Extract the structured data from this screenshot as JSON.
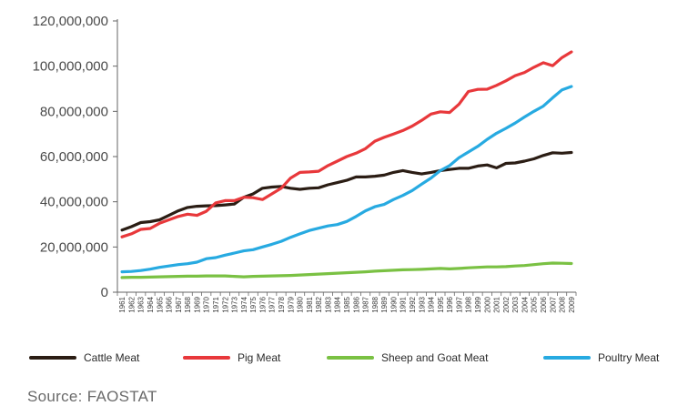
{
  "chart_data": {
    "type": "line",
    "title": "",
    "xlabel": "",
    "ylabel": "",
    "ylim": [
      0,
      120000000
    ],
    "yticks": [
      "0",
      "20,000,000",
      "40,000,000",
      "60,000,000",
      "80,000,000",
      "100,000,000",
      "120,000,000"
    ],
    "ytick_values": [
      0,
      20000000,
      40000000,
      60000000,
      80000000,
      100000000,
      120000000
    ],
    "grid": false,
    "legend_position": "bottom",
    "x": [
      "1961",
      "1962",
      "1963",
      "1964",
      "1965",
      "1966",
      "1967",
      "1968",
      "1969",
      "1970",
      "1971",
      "1972",
      "1973",
      "1974",
      "1975",
      "1976",
      "1977",
      "1978",
      "1979",
      "1980",
      "1981",
      "1982",
      "1983",
      "1984",
      "1985",
      "1986",
      "1987",
      "1988",
      "1989",
      "1990",
      "1991",
      "1992",
      "1993",
      "1994",
      "1995",
      "1996",
      "1997",
      "1998",
      "1999",
      "2000",
      "2001",
      "2002",
      "2003",
      "2004",
      "2005",
      "2006",
      "2007",
      "2008",
      "2009"
    ],
    "series": [
      {
        "name": "Cattle Meat",
        "color": "#2b1d14",
        "values": [
          27500000,
          29000000,
          30800000,
          31200000,
          32000000,
          34000000,
          36000000,
          37500000,
          38000000,
          38200000,
          38300000,
          38600000,
          39000000,
          42000000,
          43500000,
          46000000,
          46500000,
          46800000,
          46000000,
          45500000,
          46000000,
          46200000,
          47500000,
          48500000,
          49500000,
          51000000,
          51000000,
          51300000,
          51800000,
          53000000,
          53800000,
          53000000,
          52300000,
          53000000,
          53800000,
          54300000,
          54800000,
          54800000,
          55800000,
          56300000,
          55000000,
          57000000,
          57200000,
          58000000,
          59000000,
          60500000,
          61700000,
          61500000,
          61800000
        ]
      },
      {
        "name": "Pig Meat",
        "color": "#e8383b",
        "values": [
          24500000,
          25800000,
          27800000,
          28200000,
          30500000,
          32000000,
          33500000,
          34500000,
          34000000,
          35800000,
          39500000,
          40500000,
          40500000,
          42000000,
          41800000,
          41000000,
          43500000,
          46000000,
          50500000,
          53000000,
          53200000,
          53500000,
          56000000,
          58000000,
          60000000,
          61500000,
          63500000,
          66800000,
          68500000,
          70000000,
          71500000,
          73500000,
          76000000,
          78800000,
          79800000,
          79500000,
          83200000,
          88800000,
          89700000,
          89800000,
          91500000,
          93500000,
          95800000,
          97200000,
          99500000,
          101500000,
          100200000,
          103800000,
          106300000
        ]
      },
      {
        "name": "Sheep and Goat Meat",
        "color": "#7ac143",
        "values": [
          6500000,
          6600000,
          6600000,
          6700000,
          6800000,
          6900000,
          7000000,
          7100000,
          7100000,
          7200000,
          7200000,
          7200000,
          7000000,
          6800000,
          7000000,
          7100000,
          7200000,
          7300000,
          7400000,
          7600000,
          7800000,
          8000000,
          8200000,
          8400000,
          8600000,
          8800000,
          9000000,
          9300000,
          9500000,
          9700000,
          9900000,
          10000000,
          10100000,
          10300000,
          10500000,
          10300000,
          10500000,
          10800000,
          11000000,
          11200000,
          11200000,
          11300000,
          11600000,
          11800000,
          12200000,
          12600000,
          12900000,
          12800000,
          12700000
        ]
      },
      {
        "name": "Poultry Meat",
        "color": "#27aae1",
        "values": [
          9000000,
          9200000,
          9600000,
          10200000,
          11000000,
          11600000,
          12200000,
          12600000,
          13300000,
          14800000,
          15300000,
          16400000,
          17300000,
          18300000,
          18800000,
          20000000,
          21200000,
          22500000,
          24300000,
          25800000,
          27300000,
          28300000,
          29300000,
          29900000,
          31300000,
          33500000,
          36000000,
          37800000,
          38800000,
          41000000,
          42800000,
          45000000,
          47800000,
          50500000,
          53800000,
          56000000,
          59500000,
          62000000,
          64500000,
          67600000,
          70300000,
          72500000,
          74800000,
          77500000,
          80000000,
          82300000,
          86000000,
          89500000,
          91000000
        ]
      }
    ]
  },
  "source": "Source: FAOSTAT"
}
